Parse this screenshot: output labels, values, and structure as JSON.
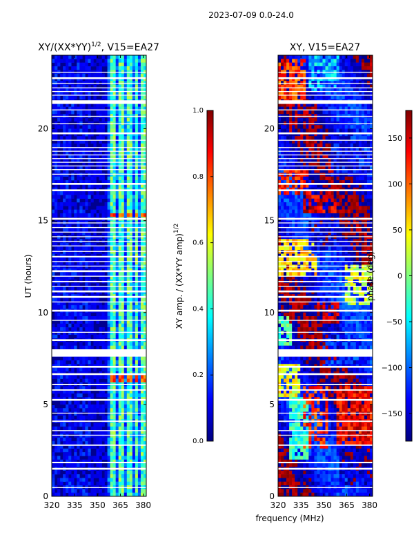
{
  "figure": {
    "suptitle": "2023-07-09 0.0-24.0",
    "xlabel": "frequency (MHz)"
  },
  "colors": {
    "background_low": "#00008f",
    "jet_stops": [
      "#00007f",
      "#0000ff",
      "#007fff",
      "#00ffff",
      "#7fff7f",
      "#ffff00",
      "#ff7f00",
      "#ff0000",
      "#7f0000"
    ]
  },
  "chart_data": [
    {
      "type": "heatmap",
      "title_main": "XY/(XX*YY)",
      "title_sup": "1/2",
      "title_tail": ", V15=EA27",
      "xlabel": "",
      "ylabel": "UT (hours)",
      "xlim": [
        320,
        382
      ],
      "ylim": [
        0,
        24
      ],
      "x_ticks": [
        320,
        335,
        350,
        365,
        380
      ],
      "y_ticks": [
        0,
        5,
        10,
        15,
        20
      ],
      "bright_channels_mhz": [
        [
          359,
          362
        ],
        [
          364,
          368
        ],
        [
          370,
          373
        ],
        [
          375,
          377
        ],
        [
          379,
          382
        ]
      ],
      "colorbar": {
        "label_main": "XY amp. / (XX*YY amp)",
        "label_sup": "1/2",
        "range": [
          0.0,
          1.0
        ],
        "ticks": [
          "0.0",
          "0.2",
          "0.4",
          "0.6",
          "0.8",
          "1.0"
        ]
      }
    },
    {
      "type": "heatmap",
      "title": "XY, V15=EA27",
      "xlabel": "frequency (MHz)",
      "ylabel": "",
      "xlim": [
        320,
        382
      ],
      "ylim": [
        0,
        24
      ],
      "x_ticks": [
        320,
        335,
        350,
        365,
        380
      ],
      "y_ticks": [
        0,
        5,
        10,
        15,
        20
      ],
      "colorbar": {
        "label": "phase (deg)",
        "range": [
          -180,
          180
        ],
        "ticks": [
          "150",
          "100",
          "50",
          "0",
          "−50",
          "−100",
          "−150"
        ]
      }
    }
  ],
  "flagged_gaps_hours": [
    [
      0.45,
      0.5
    ],
    [
      1.45,
      1.55
    ],
    [
      1.8,
      1.88
    ],
    [
      2.75,
      2.82
    ],
    [
      3.3,
      3.35
    ],
    [
      3.55,
      3.6
    ],
    [
      4.05,
      4.12
    ],
    [
      4.5,
      4.55
    ],
    [
      5.2,
      5.3
    ],
    [
      5.75,
      5.82
    ],
    [
      6.05,
      6.12
    ],
    [
      6.6,
      6.7
    ],
    [
      7.0,
      7.1
    ],
    [
      7.6,
      8.0
    ],
    [
      8.45,
      8.55
    ],
    [
      8.9,
      8.95
    ],
    [
      9.55,
      9.6
    ],
    [
      10.05,
      10.15
    ],
    [
      10.55,
      10.6
    ],
    [
      10.8,
      10.9
    ],
    [
      11.1,
      11.2
    ],
    [
      11.4,
      11.45
    ],
    [
      11.65,
      11.72
    ],
    [
      11.95,
      12.0
    ],
    [
      12.2,
      12.3
    ],
    [
      12.5,
      12.55
    ],
    [
      12.75,
      12.8
    ],
    [
      13.0,
      13.08
    ],
    [
      13.3,
      13.35
    ],
    [
      13.6,
      13.65
    ],
    [
      13.85,
      13.9
    ],
    [
      14.1,
      14.15
    ],
    [
      14.35,
      14.4
    ],
    [
      14.6,
      14.65
    ],
    [
      14.85,
      14.9
    ],
    [
      15.05,
      15.15
    ],
    [
      16.6,
      16.7
    ],
    [
      16.95,
      17.05
    ],
    [
      17.5,
      17.55
    ],
    [
      17.75,
      17.8
    ],
    [
      17.95,
      18.0
    ],
    [
      18.15,
      18.2
    ],
    [
      18.35,
      18.4
    ],
    [
      18.55,
      18.6
    ],
    [
      18.75,
      18.8
    ],
    [
      18.95,
      19.0
    ],
    [
      19.35,
      19.4
    ],
    [
      19.7,
      19.8
    ],
    [
      20.25,
      20.3
    ],
    [
      20.65,
      20.7
    ],
    [
      21.0,
      21.05
    ],
    [
      21.35,
      21.55
    ],
    [
      21.8,
      21.85
    ],
    [
      22.0,
      22.05
    ],
    [
      22.2,
      22.25
    ],
    [
      22.45,
      22.5
    ],
    [
      22.7,
      22.8
    ],
    [
      23.05,
      23.1
    ]
  ],
  "phase_blobs": [
    [
      328,
      340,
      1.9,
      5.4,
      -30,
      0.9
    ],
    [
      337,
      352,
      2.6,
      6.0,
      120,
      0.6
    ],
    [
      320,
      334,
      5.5,
      7.2,
      40,
      0.8
    ],
    [
      345,
      360,
      9.4,
      10.6,
      160,
      0.8
    ],
    [
      358,
      382,
      2.7,
      6.0,
      140,
      0.85
    ],
    [
      360,
      382,
      0.6,
      2.8,
      -160,
      0.7
    ],
    [
      320,
      345,
      12.0,
      14.0,
      60,
      0.8
    ],
    [
      336,
      358,
      15.5,
      16.6,
      150,
      0.8
    ],
    [
      320,
      340,
      16.5,
      17.8,
      130,
      0.7
    ],
    [
      355,
      382,
      17.5,
      20.0,
      -140,
      0.7
    ],
    [
      327,
      345,
      19.5,
      21.3,
      175,
      0.8
    ],
    [
      320,
      338,
      21.5,
      23.8,
      110,
      0.7
    ],
    [
      340,
      360,
      22.0,
      23.9,
      -60,
      0.6
    ],
    [
      320,
      330,
      8.2,
      9.8,
      -20,
      0.8
    ],
    [
      350,
      375,
      7.0,
      9.0,
      -120,
      0.8
    ],
    [
      363,
      382,
      10.5,
      12.5,
      30,
      0.6
    ],
    [
      340,
      360,
      13.5,
      15.0,
      -150,
      0.7
    ]
  ]
}
